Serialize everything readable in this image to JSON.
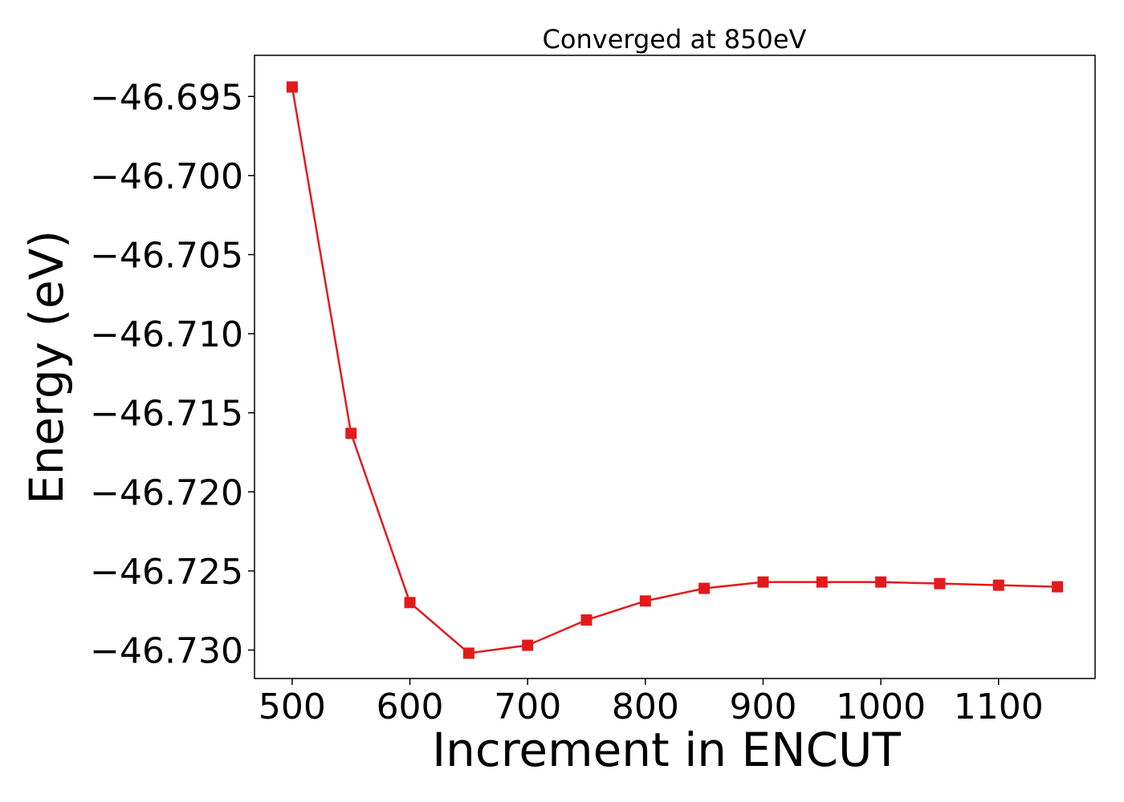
{
  "chart_data": {
    "type": "line",
    "title": "Converged at 850eV",
    "xlabel": "Increment in ENCUT",
    "ylabel": "Energy (eV)",
    "x": [
      500,
      550,
      600,
      650,
      700,
      750,
      800,
      850,
      900,
      950,
      1000,
      1050,
      1100,
      1150
    ],
    "series": [
      {
        "values": [
          -46.6944,
          -46.7163,
          -46.727,
          -46.7302,
          -46.7297,
          -46.7281,
          -46.7269,
          -46.7261,
          -46.7257,
          -46.7257,
          -46.7257,
          -46.7258,
          -46.7259,
          -46.726
        ],
        "color": "#e31a1c",
        "marker": "square"
      }
    ],
    "xlim": [
      468,
      1182
    ],
    "ylim": [
      -46.7318,
      -46.6924
    ],
    "xticks": [
      500,
      600,
      700,
      800,
      900,
      1000,
      1100
    ],
    "xtick_labels": [
      "500",
      "600",
      "700",
      "800",
      "900",
      "1000",
      "1100"
    ],
    "yticks": [
      -46.695,
      -46.7,
      -46.705,
      -46.71,
      -46.715,
      -46.72,
      -46.725,
      -46.73
    ],
    "ytick_labels": [
      "−46.695",
      "−46.700",
      "−46.705",
      "−46.710",
      "−46.715",
      "−46.720",
      "−46.725",
      "−46.730"
    ],
    "grid": false,
    "legend": "none"
  }
}
